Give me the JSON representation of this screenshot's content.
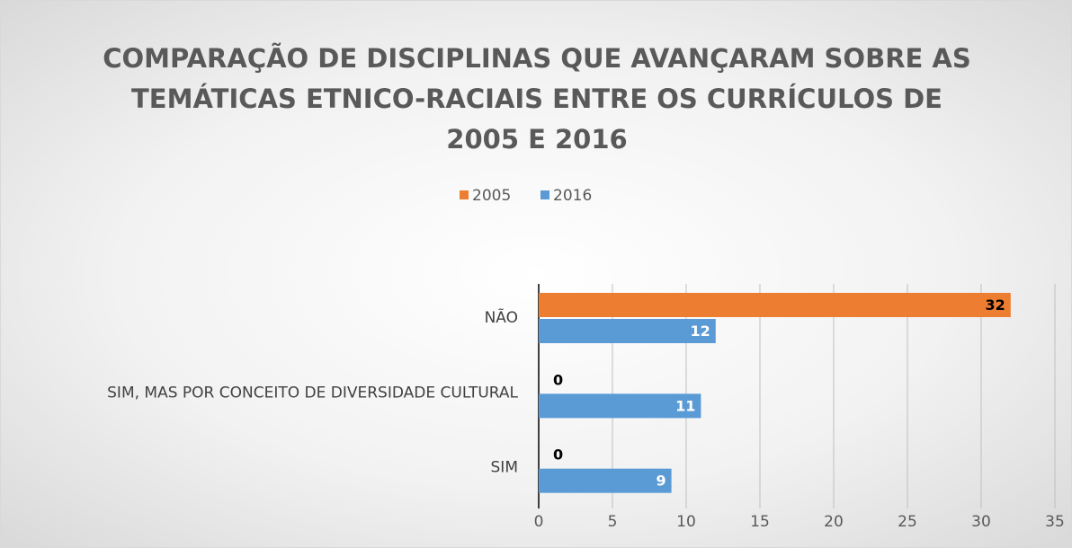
{
  "chart_data": {
    "type": "hbar",
    "title": "COMPARAÇÃO DE DISCIPLINAS QUE AVANÇARAM SOBRE AS TEMÁTICAS ETNICO-RACIAIS ENTRE OS CURRÍCULOS DE 2005 E 2016",
    "categories": [
      "NÃO",
      "SIM, MAS POR CONCEITO DE DIVERSIDADE CULTURAL",
      "SIM"
    ],
    "series": [
      {
        "name": "2005",
        "color": "#ed7d31",
        "values": [
          32,
          0,
          0
        ]
      },
      {
        "name": "2016",
        "color": "#5b9bd5",
        "values": [
          12,
          11,
          9
        ]
      }
    ],
    "xlim": [
      0,
      35
    ],
    "xticks": [
      0,
      5,
      10,
      15,
      20,
      25,
      30,
      35
    ],
    "grid": true,
    "legend": "top"
  }
}
